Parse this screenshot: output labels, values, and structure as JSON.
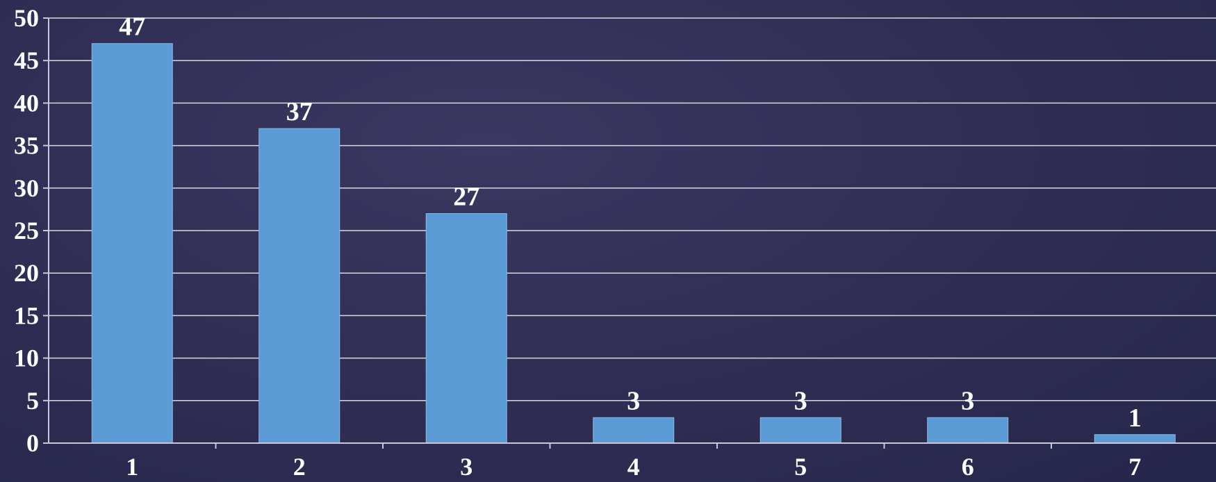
{
  "chart_data": {
    "type": "bar",
    "categories": [
      "1",
      "2",
      "3",
      "4",
      "5",
      "6",
      "7"
    ],
    "values": [
      47,
      37,
      27,
      3,
      3,
      3,
      1
    ],
    "data_labels": [
      "47",
      "37",
      "27",
      "3",
      "3",
      "3",
      "1"
    ],
    "title": "",
    "xlabel": "",
    "ylabel": "",
    "ylim": [
      0,
      50
    ],
    "yticks": [
      0,
      5,
      10,
      15,
      20,
      25,
      30,
      35,
      40,
      45,
      50
    ],
    "ytick_labels": [
      "0",
      "5",
      "10",
      "15",
      "20",
      "25",
      "30",
      "35",
      "40",
      "45",
      "50"
    ],
    "grid": true,
    "legend": "none",
    "bar_color": "#5b9bd5",
    "background_color": "#2e2c52",
    "text_color": "#ffffff",
    "grid_color": "#d8d8e0"
  }
}
